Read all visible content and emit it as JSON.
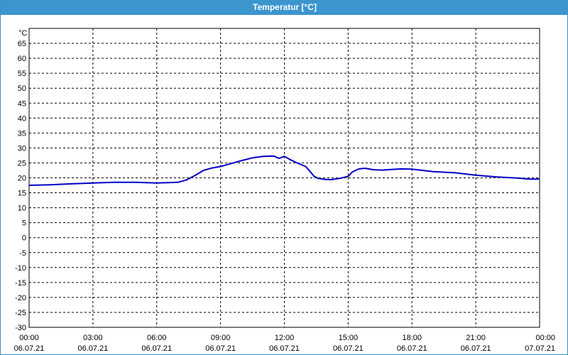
{
  "window": {
    "title": "Temperatur [°C]"
  },
  "chart_data": {
    "type": "line",
    "title": "Temperatur [°C]",
    "ylabel": "°C",
    "xlabel": "",
    "ylim": [
      -30,
      70
    ],
    "xlim_hours": [
      0,
      24
    ],
    "grid": true,
    "line_color": "#0000c8",
    "y_ticks": [
      -30,
      -25,
      -20,
      -15,
      -10,
      -5,
      0,
      5,
      10,
      15,
      20,
      25,
      30,
      35,
      40,
      45,
      50,
      55,
      60,
      65
    ],
    "x_ticks": [
      {
        "time": "00:00",
        "date": "06.07.21",
        "hour": 0
      },
      {
        "time": "03:00",
        "date": "06.07.21",
        "hour": 3
      },
      {
        "time": "06:00",
        "date": "06.07.21",
        "hour": 6
      },
      {
        "time": "09:00",
        "date": "06.07.21",
        "hour": 9
      },
      {
        "time": "12:00",
        "date": "06.07.21",
        "hour": 12
      },
      {
        "time": "15:00",
        "date": "06.07.21",
        "hour": 15
      },
      {
        "time": "18:00",
        "date": "06.07.21",
        "hour": 18
      },
      {
        "time": "21:00",
        "date": "06.07.21",
        "hour": 21
      },
      {
        "time": "00:00",
        "date": "07.07.21",
        "hour": 24
      }
    ],
    "series": [
      {
        "x_hours": [
          0,
          1,
          2,
          3,
          4,
          5,
          6,
          7,
          7.4,
          7.8,
          8.2,
          8.6,
          9,
          9.5,
          10,
          10.5,
          11,
          11.5,
          11.75,
          12,
          12.3,
          12.6,
          13,
          13.2,
          13.4,
          13.6,
          13.9,
          14.2,
          14.6,
          15,
          15.2,
          15.5,
          15.8,
          16.2,
          16.6,
          17,
          17.5,
          18,
          18.5,
          19,
          20,
          21,
          22,
          23,
          23.5,
          24
        ],
        "y": [
          17.5,
          17.7,
          18.0,
          18.3,
          18.5,
          18.5,
          18.3,
          18.5,
          19.3,
          20.8,
          22.5,
          23.3,
          23.8,
          24.8,
          25.8,
          26.7,
          27.2,
          27.3,
          26.5,
          27.2,
          26.0,
          25.0,
          23.8,
          22.2,
          20.5,
          19.8,
          19.5,
          19.4,
          19.8,
          20.5,
          22.0,
          23.0,
          23.2,
          22.7,
          22.6,
          22.8,
          23.0,
          22.9,
          22.5,
          22.1,
          21.7,
          20.9,
          20.3,
          19.9,
          19.6,
          19.6
        ]
      }
    ]
  }
}
